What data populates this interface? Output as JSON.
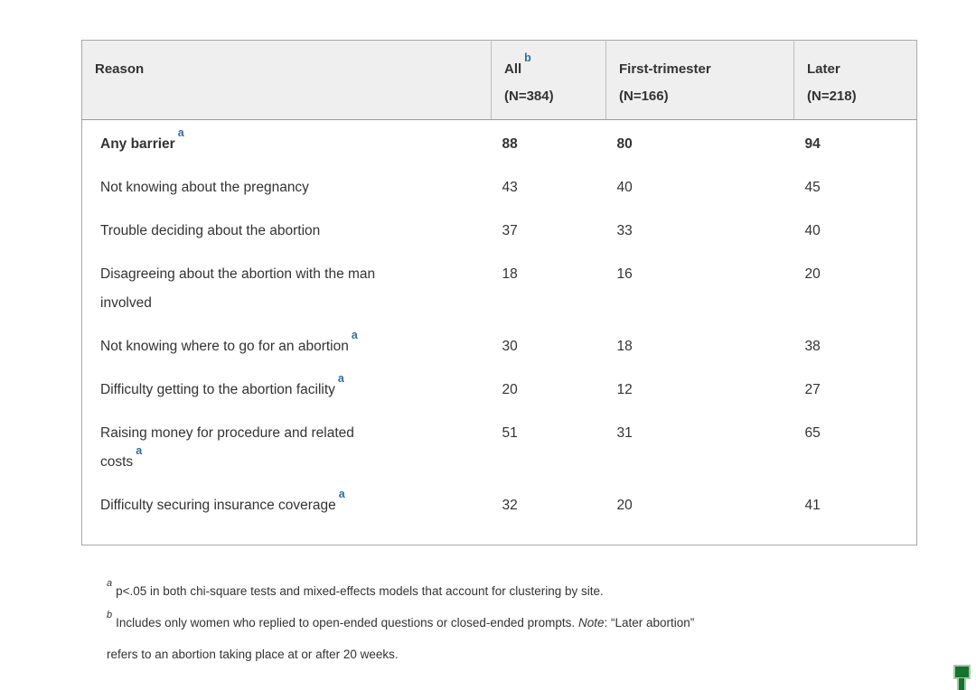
{
  "table": {
    "header": {
      "reason": "Reason",
      "col_all": {
        "label": "All",
        "sup": "b",
        "n": "(N=384)"
      },
      "col_first": {
        "label": "First-trimester",
        "sup": "",
        "n": "(N=166)"
      },
      "col_later": {
        "label": "Later",
        "sup": "",
        "n": "(N=218)"
      }
    },
    "rows": [
      {
        "reason": "Any barrier",
        "sup": "a",
        "all": "88",
        "first": "80",
        "later": "94"
      },
      {
        "reason": "Not knowing about the pregnancy",
        "sup": "",
        "all": "43",
        "first": "40",
        "later": "45"
      },
      {
        "reason": "Trouble deciding about the abortion",
        "sup": "",
        "all": "37",
        "first": "33",
        "later": "40"
      },
      {
        "reason": "Disagreeing about the abortion with the man\ninvolved",
        "sup": "",
        "all": "18",
        "first": "16",
        "later": "20"
      },
      {
        "reason": "Not knowing where to go for an abortion",
        "sup": "a",
        "all": "30",
        "first": "18",
        "later": "38"
      },
      {
        "reason": "Difficulty getting to the abortion facility",
        "sup": "a",
        "all": "20",
        "first": "12",
        "later": "27"
      },
      {
        "reason": "Raising money for procedure and related\ncosts",
        "sup": "a",
        "all": "51",
        "first": "31",
        "later": "65"
      },
      {
        "reason": "Difficulty securing insurance coverage",
        "sup": "a",
        "all": "32",
        "first": "20",
        "later": "41"
      }
    ]
  },
  "footnotes": {
    "a": {
      "marker": "a",
      "text": "p<.05 in both chi-square tests and mixed-effects models that account for clustering by site."
    },
    "b": {
      "marker": "b",
      "part1": "Includes only women who replied to open-ended questions or closed-ended prompts. ",
      "note_label": "Note",
      "part2": ": “Later abortion”\nrefers to an abortion taking place at or after 20 weeks."
    }
  },
  "colors": {
    "header_bg": "#efefef",
    "table_border": "#a9a9a9",
    "text": "#333333",
    "footnote_ref_blue": "#2e6da4",
    "marker_green": "#17712f",
    "marker_green_border": "#a3cba8"
  }
}
